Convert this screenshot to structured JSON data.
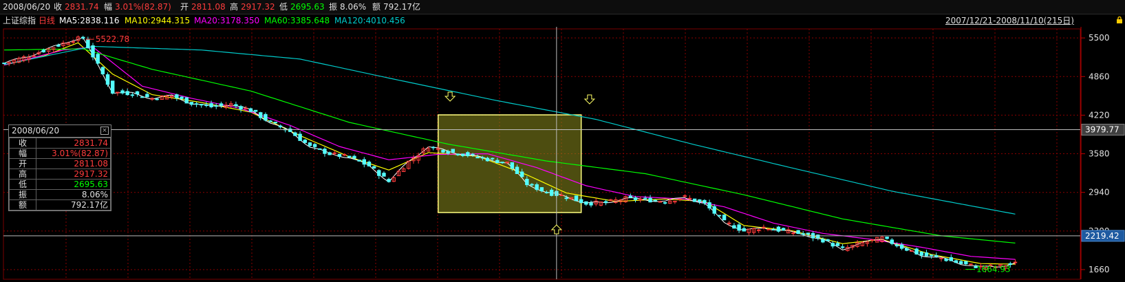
{
  "top_bar": {
    "date": "2008/06/20",
    "close_label": "收",
    "close_value": "2831.74",
    "change_label": "幅",
    "change_value": "3.01%(82.87)",
    "open_label": "开",
    "open_value": "2811.08",
    "high_label": "高",
    "high_value": "2917.32",
    "low_label": "低",
    "low_value": "2695.63",
    "amplitude_label": "振",
    "amplitude_value": "8.06%",
    "amount_label": "额",
    "amount_value": "792.17亿"
  },
  "ma_bar": {
    "index_name": "上证综指",
    "period": "日线",
    "ma5": "MA5:2838.116",
    "ma10": "MA10:2944.315",
    "ma20": "MA20:3178.350",
    "ma60": "MA60:3385.648",
    "ma120": "MA120:4010.456",
    "date_range": "2007/12/21-2008/11/10(215日)"
  },
  "colors": {
    "up": "#ff3c3c",
    "down": "#54fcfc",
    "ma5": "#ffffff",
    "ma10": "#ffff00",
    "ma20": "#ff00ff",
    "ma60": "#00ff00",
    "ma120": "#00cccc",
    "grid": "#8b0000",
    "highlight_fill": "#8c8c1e",
    "highlight_stroke": "#ffff80"
  },
  "info_box": {
    "date": "2008/06/20",
    "rows": [
      {
        "label": "收",
        "value": "2831.74",
        "color": "#ff3c3c"
      },
      {
        "label": "幅",
        "value": "3.01%(82.87)",
        "color": "#ff3c3c"
      },
      {
        "label": "开",
        "value": "2811.08",
        "color": "#ff3c3c"
      },
      {
        "label": "高",
        "value": "2917.32",
        "color": "#ff3c3c"
      },
      {
        "label": "低",
        "value": "2695.63",
        "color": "#00ff00"
      },
      {
        "label": "振",
        "value": "8.06%",
        "color": "#e0e0e0"
      },
      {
        "label": "额",
        "value": "792.17亿",
        "color": "#e0e0e0"
      }
    ]
  },
  "chart_data": {
    "type": "candlestick",
    "title": "上证综指 日线",
    "x_range": [
      "2007/12/21",
      "2008/11/10"
    ],
    "trading_days": 215,
    "y_ticks": [
      5500,
      4860,
      4220,
      3580,
      2940,
      2300,
      1660
    ],
    "ylim": [
      1500,
      5650
    ],
    "annotations": {
      "max": "5522.78",
      "min": "1664.93",
      "crosshair_price": "3979.77",
      "last_price": "2219.42",
      "crosshair_day": 112,
      "highlight_range": [
        88,
        117
      ]
    },
    "closes_path": [
      [
        0,
        5080
      ],
      [
        5,
        5200
      ],
      [
        10,
        5350
      ],
      [
        14,
        5470
      ],
      [
        16,
        5500
      ],
      [
        18,
        5200
      ],
      [
        20,
        4900
      ],
      [
        22,
        4600
      ],
      [
        26,
        4580
      ],
      [
        30,
        4500
      ],
      [
        34,
        4540
      ],
      [
        38,
        4420
      ],
      [
        42,
        4360
      ],
      [
        46,
        4400
      ],
      [
        50,
        4300
      ],
      [
        54,
        4100
      ],
      [
        58,
        3950
      ],
      [
        62,
        3700
      ],
      [
        66,
        3580
      ],
      [
        70,
        3520
      ],
      [
        74,
        3380
      ],
      [
        78,
        3120
      ],
      [
        82,
        3450
      ],
      [
        86,
        3700
      ],
      [
        90,
        3620
      ],
      [
        94,
        3560
      ],
      [
        98,
        3490
      ],
      [
        102,
        3430
      ],
      [
        106,
        3080
      ],
      [
        110,
        2940
      ],
      [
        114,
        2870
      ],
      [
        118,
        2760
      ],
      [
        122,
        2770
      ],
      [
        126,
        2840
      ],
      [
        130,
        2820
      ],
      [
        134,
        2790
      ],
      [
        138,
        2860
      ],
      [
        142,
        2750
      ],
      [
        146,
        2450
      ],
      [
        150,
        2300
      ],
      [
        154,
        2360
      ],
      [
        158,
        2300
      ],
      [
        162,
        2250
      ],
      [
        166,
        2150
      ],
      [
        170,
        2000
      ],
      [
        174,
        2100
      ],
      [
        178,
        2180
      ],
      [
        182,
        2030
      ],
      [
        186,
        1900
      ],
      [
        190,
        1850
      ],
      [
        194,
        1760
      ],
      [
        198,
        1700
      ],
      [
        202,
        1720
      ],
      [
        205,
        1760
      ]
    ],
    "ma_lines": [
      {
        "name": "MA10",
        "points": [
          [
            0,
            5050
          ],
          [
            8,
            5200
          ],
          [
            15,
            5420
          ],
          [
            22,
            4900
          ],
          [
            30,
            4560
          ],
          [
            40,
            4430
          ],
          [
            50,
            4270
          ],
          [
            60,
            3880
          ],
          [
            70,
            3530
          ],
          [
            78,
            3310
          ],
          [
            86,
            3600
          ],
          [
            96,
            3540
          ],
          [
            106,
            3230
          ],
          [
            114,
            2930
          ],
          [
            124,
            2790
          ],
          [
            134,
            2830
          ],
          [
            142,
            2790
          ],
          [
            150,
            2390
          ],
          [
            160,
            2300
          ],
          [
            170,
            2090
          ],
          [
            178,
            2160
          ],
          [
            188,
            1910
          ],
          [
            198,
            1760
          ],
          [
            205,
            1750
          ]
        ]
      },
      {
        "name": "MA20",
        "points": [
          [
            0,
            5050
          ],
          [
            12,
            5300
          ],
          [
            18,
            5350
          ],
          [
            28,
            4700
          ],
          [
            38,
            4500
          ],
          [
            48,
            4330
          ],
          [
            58,
            4050
          ],
          [
            68,
            3700
          ],
          [
            78,
            3480
          ],
          [
            88,
            3570
          ],
          [
            98,
            3580
          ],
          [
            108,
            3350
          ],
          [
            118,
            3050
          ],
          [
            128,
            2870
          ],
          [
            138,
            2830
          ],
          [
            146,
            2700
          ],
          [
            156,
            2430
          ],
          [
            166,
            2260
          ],
          [
            176,
            2160
          ],
          [
            186,
            2030
          ],
          [
            196,
            1880
          ],
          [
            205,
            1830
          ]
        ]
      },
      {
        "name": "MA60",
        "points": [
          [
            0,
            5300
          ],
          [
            16,
            5320
          ],
          [
            30,
            4980
          ],
          [
            50,
            4620
          ],
          [
            70,
            4100
          ],
          [
            90,
            3740
          ],
          [
            110,
            3460
          ],
          [
            130,
            3250
          ],
          [
            150,
            2900
          ],
          [
            170,
            2500
          ],
          [
            190,
            2220
          ],
          [
            205,
            2100
          ]
        ]
      },
      {
        "name": "MA120",
        "points": [
          [
            0,
            5060
          ],
          [
            18,
            5360
          ],
          [
            40,
            5300
          ],
          [
            60,
            5150
          ],
          [
            80,
            4800
          ],
          [
            100,
            4460
          ],
          [
            120,
            4150
          ],
          [
            140,
            3730
          ],
          [
            160,
            3340
          ],
          [
            180,
            2960
          ],
          [
            205,
            2580
          ]
        ]
      }
    ]
  }
}
